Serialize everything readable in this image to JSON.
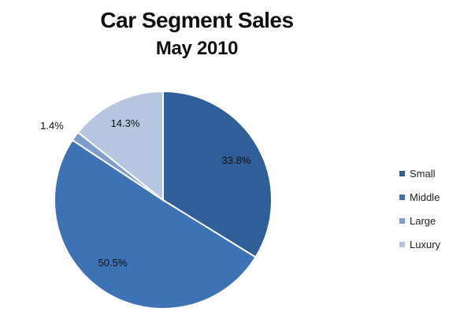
{
  "chart_data": {
    "type": "pie",
    "title": "Car Segment Sales",
    "subtitle": "May 2010",
    "slices": [
      {
        "name": "Small",
        "value": 33.8,
        "label": "33.8%",
        "color": "#2f5e98"
      },
      {
        "name": "Middle",
        "value": 50.5,
        "label": "50.5%",
        "color": "#3d72b4"
      },
      {
        "name": "Large",
        "value": 1.4,
        "label": "1.4%",
        "color": "#7f9ccf"
      },
      {
        "name": "Luxury",
        "value": 14.3,
        "label": "14.3%",
        "color": "#b6c6e1"
      }
    ],
    "legend": {
      "position": "right",
      "entries": [
        "Small",
        "Middle",
        "Large",
        "Luxury"
      ]
    },
    "start_angle_degrees": 0,
    "direction": "clockwise"
  }
}
